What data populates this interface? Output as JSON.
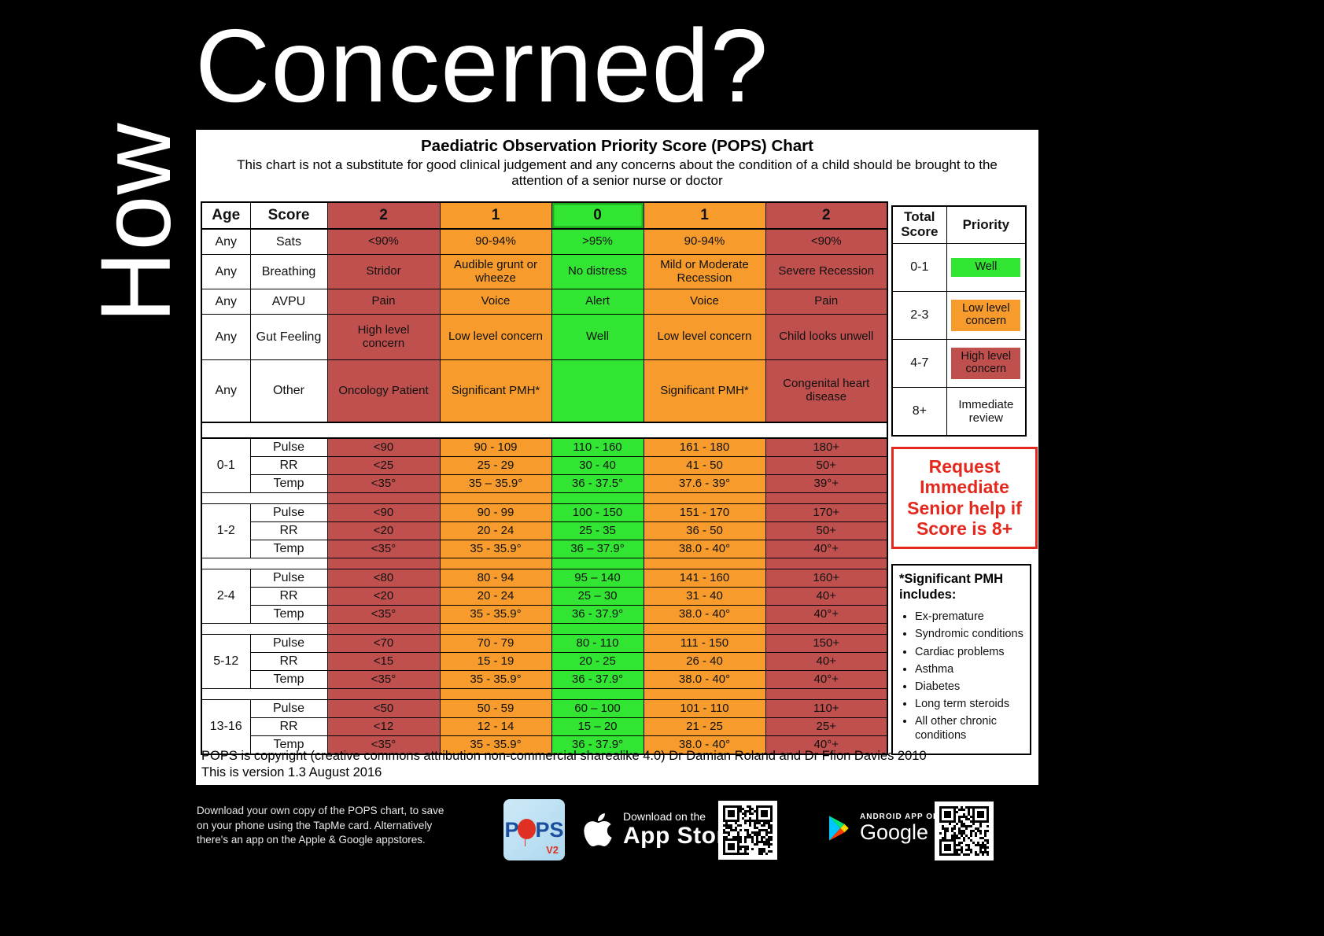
{
  "slide": {
    "heading_vertical": "How",
    "heading_main": "Concerned?"
  },
  "chart": {
    "title": "Paediatric Observation Priority Score (POPS) Chart",
    "subtitle": "This chart is not a substitute for good clinical judgement and any concerns about the condition of a child should be brought to the attention of a senior nurse or doctor",
    "copyright_line1": "POPS is copyright (creative commons attribution non-commercial sharealike 4.0) Dr Damian Roland and Dr Ffion Davies 2010",
    "copyright_line2": "This is version 1.3 August 2016"
  },
  "chart_data": {
    "type": "table",
    "header": [
      "Age",
      "Score",
      "2",
      "1",
      "0",
      "1",
      "2"
    ],
    "column_colors": [
      "#c0504d",
      "#f69b2c",
      "#32e532",
      "#f69b2c",
      "#c0504d"
    ],
    "any_rows": [
      {
        "age": "Any",
        "label": "Sats",
        "cells": [
          "<90%",
          "90-94%",
          ">95%",
          "90-94%",
          "<90%"
        ]
      },
      {
        "age": "Any",
        "label": "Breathing",
        "cells": [
          "Stridor",
          "Audible grunt or wheeze",
          "No distress",
          "Mild or Moderate Recession",
          "Severe Recession"
        ]
      },
      {
        "age": "Any",
        "label": "AVPU",
        "cells": [
          "Pain",
          "Voice",
          "Alert",
          "Voice",
          "Pain"
        ]
      },
      {
        "age": "Any",
        "label": "Gut Feeling",
        "cells": [
          "High level concern",
          "Low level concern",
          "Well",
          "Low level concern",
          "Child looks unwell"
        ]
      },
      {
        "age": "Any",
        "label": "Other",
        "cells": [
          "Oncology Patient",
          "Significant PMH*",
          "",
          "Significant PMH*",
          "Congenital heart disease"
        ]
      }
    ],
    "age_groups": [
      {
        "age": "0-1",
        "rows": [
          {
            "label": "Pulse",
            "cells": [
              "<90",
              "90 - 109",
              "110 - 160",
              "161 - 180",
              "180+"
            ]
          },
          {
            "label": "RR",
            "cells": [
              "<25",
              "25 - 29",
              "30 - 40",
              "41 - 50",
              "50+"
            ]
          },
          {
            "label": "Temp",
            "cells": [
              "<35°",
              "35 – 35.9°",
              "36 - 37.5°",
              "37.6 - 39°",
              "39°+"
            ]
          }
        ]
      },
      {
        "age": "1-2",
        "rows": [
          {
            "label": "Pulse",
            "cells": [
              "<90",
              "90 - 99",
              "100 - 150",
              "151 - 170",
              "170+"
            ]
          },
          {
            "label": "RR",
            "cells": [
              "<20",
              "20 - 24",
              "25 - 35",
              "36 - 50",
              "50+"
            ]
          },
          {
            "label": "Temp",
            "cells": [
              "<35°",
              "35 - 35.9°",
              "36 – 37.9°",
              "38.0 - 40°",
              "40°+"
            ]
          }
        ]
      },
      {
        "age": "2-4",
        "rows": [
          {
            "label": "Pulse",
            "cells": [
              "<80",
              "80 - 94",
              "95 – 140",
              "141 - 160",
              "160+"
            ]
          },
          {
            "label": "RR",
            "cells": [
              "<20",
              "20 - 24",
              "25 – 30",
              "31 - 40",
              "40+"
            ]
          },
          {
            "label": "Temp",
            "cells": [
              "<35°",
              "35 - 35.9°",
              "36 - 37.9°",
              "38.0 - 40°",
              "40°+"
            ]
          }
        ]
      },
      {
        "age": "5-12",
        "rows": [
          {
            "label": "Pulse",
            "cells": [
              "<70",
              "70 - 79",
              "80 - 110",
              "111 - 150",
              "150+"
            ]
          },
          {
            "label": "RR",
            "cells": [
              "<15",
              "15 - 19",
              "20 - 25",
              "26 - 40",
              "40+"
            ]
          },
          {
            "label": "Temp",
            "cells": [
              "<35°",
              "35 - 35.9°",
              "36 - 37.9°",
              "38.0 - 40°",
              "40°+"
            ]
          }
        ]
      },
      {
        "age": "13-16",
        "rows": [
          {
            "label": "Pulse",
            "cells": [
              "<50",
              "50 - 59",
              "60 – 100",
              "101 - 110",
              "110+"
            ]
          },
          {
            "label": "RR",
            "cells": [
              "<12",
              "12 - 14",
              "15 – 20",
              "21 - 25",
              "25+"
            ]
          },
          {
            "label": "Temp",
            "cells": [
              "<35°",
              "35 - 35.9°",
              "36 - 37.9°",
              "38.0 - 40°",
              "40°+"
            ]
          }
        ]
      }
    ]
  },
  "priority_table": {
    "headers": [
      "Total Score",
      "Priority"
    ],
    "rows": [
      {
        "score": "0-1",
        "priority": "Well",
        "color": "#32e532"
      },
      {
        "score": "2-3",
        "priority": "Low level concern",
        "color": "#f69b2c"
      },
      {
        "score": "4-7",
        "priority": "High level concern",
        "color": "#c0504d"
      },
      {
        "score": "8+",
        "priority": "Immediate review",
        "color": ""
      }
    ]
  },
  "request_box": {
    "text": "Request Immediate Senior help if Score is 8+",
    "color": "#e3291e"
  },
  "pmh_box": {
    "title": "*Significant PMH includes:",
    "items": [
      "Ex-premature",
      "Syndromic conditions",
      "Cardiac problems",
      "Asthma",
      "Diabetes",
      "Long term steroids",
      "All other chronic conditions"
    ]
  },
  "footer": {
    "download_text": "Download your own copy of the POPS chart, to save on your phone using the TapMe card. Alternatively there's an app on the Apple & Google appstores.",
    "pops_logo": {
      "text": "POPS",
      "version": "V2"
    },
    "app_store": {
      "line1": "Download on the",
      "line2": "App Store"
    },
    "google_play": {
      "line1": "ANDROID APP ON",
      "line2": "Google play"
    }
  }
}
